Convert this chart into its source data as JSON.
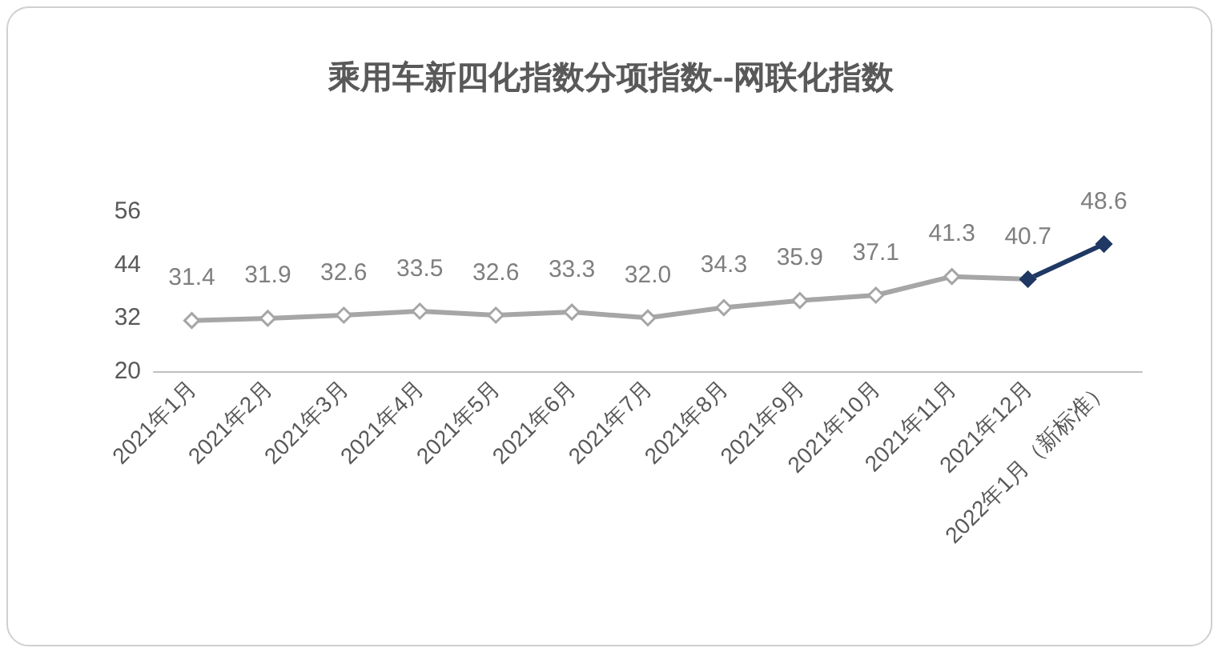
{
  "chart_data": {
    "type": "line",
    "title": "乘用车新四化指数分项指数--网联化指数",
    "categories": [
      "2021年1月",
      "2021年2月",
      "2021年3月",
      "2021年4月",
      "2021年5月",
      "2021年6月",
      "2021年7月",
      "2021年8月",
      "2021年9月",
      "2021年10月",
      "2021年11月",
      "2021年12月",
      "2022年1月（新标准）"
    ],
    "series": [
      {
        "color": "#a6a6a6",
        "values": [
          31.4,
          31.9,
          32.6,
          33.5,
          32.6,
          33.3,
          32.0,
          34.3,
          35.9,
          37.1,
          41.3,
          40.7,
          null
        ],
        "value_labels": [
          "31.4",
          "31.9",
          "32.6",
          "33.5",
          "32.6",
          "33.3",
          "32.0",
          "34.3",
          "35.9",
          "37.1",
          "41.3",
          "40.7",
          null
        ]
      },
      {
        "color": "#1f3864",
        "values": [
          null,
          null,
          null,
          null,
          null,
          null,
          null,
          null,
          null,
          null,
          null,
          40.7,
          48.6
        ],
        "value_labels": [
          null,
          null,
          null,
          null,
          null,
          null,
          null,
          null,
          null,
          null,
          null,
          null,
          "48.6"
        ]
      }
    ],
    "ylim": [
      20,
      56
    ],
    "yticks": [
      20,
      32,
      44,
      56
    ],
    "grid": false,
    "marker": "diamond"
  }
}
